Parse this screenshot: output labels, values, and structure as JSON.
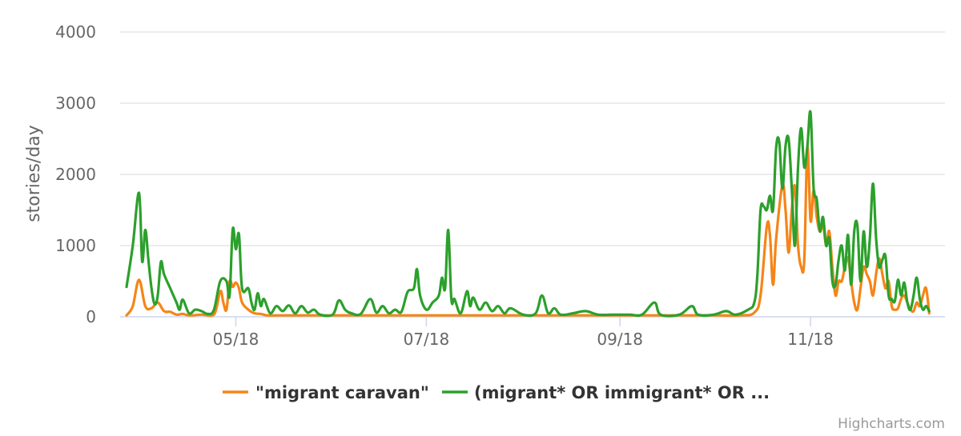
{
  "chart_data": {
    "type": "line",
    "title": "",
    "xlabel": "",
    "ylabel": "stories/day",
    "ylim": [
      0,
      4000
    ],
    "yticks": [
      0,
      1000,
      2000,
      3000,
      4000
    ],
    "xlim": [
      "2018-03-27",
      "2018-12-12"
    ],
    "xticks": [
      {
        "date": "2018-05-01",
        "label": "05/18"
      },
      {
        "date": "2018-07-01",
        "label": "07/18"
      },
      {
        "date": "2018-09-01",
        "label": "09/18"
      },
      {
        "date": "2018-11-01",
        "label": "11/18"
      }
    ],
    "grid": true,
    "legend": "bottom-center",
    "series": [
      {
        "name": "\"migrant caravan\"",
        "color": "#f58518",
        "points": [
          [
            "2018-03-27",
            20
          ],
          [
            "2018-03-29",
            150
          ],
          [
            "2018-03-31",
            520
          ],
          [
            "2018-04-02",
            150
          ],
          [
            "2018-04-04",
            120
          ],
          [
            "2018-04-06",
            200
          ],
          [
            "2018-04-08",
            80
          ],
          [
            "2018-04-10",
            70
          ],
          [
            "2018-04-12",
            30
          ],
          [
            "2018-04-14",
            40
          ],
          [
            "2018-04-16",
            20
          ],
          [
            "2018-04-20",
            30
          ],
          [
            "2018-04-24",
            30
          ],
          [
            "2018-04-26",
            360
          ],
          [
            "2018-04-27",
            200
          ],
          [
            "2018-04-28",
            100
          ],
          [
            "2018-04-29",
            500
          ],
          [
            "2018-04-30",
            420
          ],
          [
            "2018-05-01",
            480
          ],
          [
            "2018-05-02",
            400
          ],
          [
            "2018-05-03",
            200
          ],
          [
            "2018-05-05",
            100
          ],
          [
            "2018-05-07",
            50
          ],
          [
            "2018-05-09",
            40
          ],
          [
            "2018-05-11",
            20
          ],
          [
            "2018-05-15",
            20
          ],
          [
            "2018-05-20",
            20
          ],
          [
            "2018-05-25",
            20
          ],
          [
            "2018-06-01",
            20
          ],
          [
            "2018-06-10",
            20
          ],
          [
            "2018-06-20",
            20
          ],
          [
            "2018-07-01",
            20
          ],
          [
            "2018-07-15",
            20
          ],
          [
            "2018-08-01",
            20
          ],
          [
            "2018-08-15",
            20
          ],
          [
            "2018-09-01",
            20
          ],
          [
            "2018-09-15",
            20
          ],
          [
            "2018-10-01",
            20
          ],
          [
            "2018-10-10",
            20
          ],
          [
            "2018-10-14",
            60
          ],
          [
            "2018-10-16",
            300
          ],
          [
            "2018-10-18",
            1270
          ],
          [
            "2018-10-19",
            1150
          ],
          [
            "2018-10-20",
            450
          ],
          [
            "2018-10-21",
            1100
          ],
          [
            "2018-10-23",
            1850
          ],
          [
            "2018-10-24",
            1500
          ],
          [
            "2018-10-25",
            900
          ],
          [
            "2018-10-26",
            1500
          ],
          [
            "2018-10-27",
            1830
          ],
          [
            "2018-10-28",
            1000
          ],
          [
            "2018-10-29",
            700
          ],
          [
            "2018-10-30",
            800
          ],
          [
            "2018-10-31",
            2380
          ],
          [
            "2018-11-01",
            1350
          ],
          [
            "2018-11-02",
            1780
          ],
          [
            "2018-11-03",
            1400
          ],
          [
            "2018-11-04",
            1200
          ],
          [
            "2018-11-05",
            1300
          ],
          [
            "2018-11-06",
            1000
          ],
          [
            "2018-11-07",
            1200
          ],
          [
            "2018-11-08",
            700
          ],
          [
            "2018-11-09",
            300
          ],
          [
            "2018-11-10",
            500
          ],
          [
            "2018-11-11",
            500
          ],
          [
            "2018-11-12",
            700
          ],
          [
            "2018-11-13",
            830
          ],
          [
            "2018-11-14",
            500
          ],
          [
            "2018-11-15",
            200
          ],
          [
            "2018-11-16",
            100
          ],
          [
            "2018-11-17",
            400
          ],
          [
            "2018-11-18",
            700
          ],
          [
            "2018-11-19",
            600
          ],
          [
            "2018-11-20",
            500
          ],
          [
            "2018-11-21",
            300
          ],
          [
            "2018-11-22",
            600
          ],
          [
            "2018-11-23",
            820
          ],
          [
            "2018-11-24",
            600
          ],
          [
            "2018-11-25",
            400
          ],
          [
            "2018-11-26",
            500
          ],
          [
            "2018-11-27",
            150
          ],
          [
            "2018-11-28",
            100
          ],
          [
            "2018-11-29",
            120
          ],
          [
            "2018-11-30",
            250
          ],
          [
            "2018-12-01",
            300
          ],
          [
            "2018-12-02",
            200
          ],
          [
            "2018-12-03",
            100
          ],
          [
            "2018-12-04",
            80
          ],
          [
            "2018-12-05",
            200
          ],
          [
            "2018-12-06",
            150
          ],
          [
            "2018-12-07",
            300
          ],
          [
            "2018-12-08",
            400
          ],
          [
            "2018-12-09",
            50
          ]
        ]
      },
      {
        "name": "(migrant* OR immigrant* OR ...",
        "color": "#2ca02c",
        "points": [
          [
            "2018-03-27",
            420
          ],
          [
            "2018-03-29",
            1000
          ],
          [
            "2018-03-31",
            1740
          ],
          [
            "2018-04-01",
            780
          ],
          [
            "2018-04-02",
            1220
          ],
          [
            "2018-04-03",
            800
          ],
          [
            "2018-04-04",
            400
          ],
          [
            "2018-04-05",
            180
          ],
          [
            "2018-04-06",
            300
          ],
          [
            "2018-04-07",
            770
          ],
          [
            "2018-04-08",
            600
          ],
          [
            "2018-04-10",
            400
          ],
          [
            "2018-04-12",
            200
          ],
          [
            "2018-04-13",
            100
          ],
          [
            "2018-04-14",
            240
          ],
          [
            "2018-04-16",
            50
          ],
          [
            "2018-04-18",
            100
          ],
          [
            "2018-04-20",
            80
          ],
          [
            "2018-04-22",
            40
          ],
          [
            "2018-04-24",
            100
          ],
          [
            "2018-04-26",
            500
          ],
          [
            "2018-04-28",
            500
          ],
          [
            "2018-04-29",
            300
          ],
          [
            "2018-04-30",
            1230
          ],
          [
            "2018-05-01",
            950
          ],
          [
            "2018-05-02",
            1160
          ],
          [
            "2018-05-03",
            400
          ],
          [
            "2018-05-05",
            400
          ],
          [
            "2018-05-06",
            200
          ],
          [
            "2018-05-07",
            100
          ],
          [
            "2018-05-08",
            330
          ],
          [
            "2018-05-09",
            150
          ],
          [
            "2018-05-10",
            250
          ],
          [
            "2018-05-12",
            50
          ],
          [
            "2018-05-14",
            150
          ],
          [
            "2018-05-16",
            80
          ],
          [
            "2018-05-18",
            160
          ],
          [
            "2018-05-20",
            50
          ],
          [
            "2018-05-22",
            150
          ],
          [
            "2018-05-24",
            60
          ],
          [
            "2018-05-26",
            100
          ],
          [
            "2018-05-28",
            30
          ],
          [
            "2018-06-01",
            30
          ],
          [
            "2018-06-03",
            230
          ],
          [
            "2018-06-05",
            100
          ],
          [
            "2018-06-07",
            50
          ],
          [
            "2018-06-10",
            40
          ],
          [
            "2018-06-13",
            250
          ],
          [
            "2018-06-15",
            60
          ],
          [
            "2018-06-17",
            150
          ],
          [
            "2018-06-19",
            50
          ],
          [
            "2018-06-21",
            100
          ],
          [
            "2018-06-23",
            70
          ],
          [
            "2018-06-25",
            350
          ],
          [
            "2018-06-27",
            400
          ],
          [
            "2018-06-28",
            670
          ],
          [
            "2018-06-29",
            300
          ],
          [
            "2018-07-01",
            100
          ],
          [
            "2018-07-03",
            200
          ],
          [
            "2018-07-05",
            300
          ],
          [
            "2018-07-06",
            550
          ],
          [
            "2018-07-07",
            400
          ],
          [
            "2018-07-08",
            1220
          ],
          [
            "2018-07-09",
            250
          ],
          [
            "2018-07-10",
            250
          ],
          [
            "2018-07-12",
            50
          ],
          [
            "2018-07-14",
            360
          ],
          [
            "2018-07-15",
            150
          ],
          [
            "2018-07-16",
            270
          ],
          [
            "2018-07-18",
            100
          ],
          [
            "2018-07-20",
            200
          ],
          [
            "2018-07-22",
            80
          ],
          [
            "2018-07-24",
            150
          ],
          [
            "2018-07-26",
            50
          ],
          [
            "2018-07-28",
            120
          ],
          [
            "2018-08-01",
            30
          ],
          [
            "2018-08-05",
            50
          ],
          [
            "2018-08-07",
            300
          ],
          [
            "2018-08-09",
            50
          ],
          [
            "2018-08-11",
            120
          ],
          [
            "2018-08-13",
            30
          ],
          [
            "2018-08-17",
            50
          ],
          [
            "2018-08-21",
            80
          ],
          [
            "2018-08-25",
            30
          ],
          [
            "2018-08-30",
            30
          ],
          [
            "2018-09-04",
            30
          ],
          [
            "2018-09-08",
            30
          ],
          [
            "2018-09-12",
            200
          ],
          [
            "2018-09-14",
            30
          ],
          [
            "2018-09-20",
            30
          ],
          [
            "2018-09-24",
            150
          ],
          [
            "2018-09-26",
            30
          ],
          [
            "2018-10-01",
            30
          ],
          [
            "2018-10-05",
            80
          ],
          [
            "2018-10-08",
            30
          ],
          [
            "2018-10-12",
            100
          ],
          [
            "2018-10-14",
            200
          ],
          [
            "2018-10-15",
            600
          ],
          [
            "2018-10-16",
            1500
          ],
          [
            "2018-10-17",
            1550
          ],
          [
            "2018-10-18",
            1500
          ],
          [
            "2018-10-19",
            1700
          ],
          [
            "2018-10-20",
            1500
          ],
          [
            "2018-10-21",
            2380
          ],
          [
            "2018-10-22",
            2450
          ],
          [
            "2018-10-23",
            1800
          ],
          [
            "2018-10-24",
            2400
          ],
          [
            "2018-10-25",
            2490
          ],
          [
            "2018-10-26",
            1800
          ],
          [
            "2018-10-27",
            1000
          ],
          [
            "2018-10-28",
            2100
          ],
          [
            "2018-10-29",
            2650
          ],
          [
            "2018-10-30",
            2100
          ],
          [
            "2018-10-31",
            2400
          ],
          [
            "2018-11-01",
            2870
          ],
          [
            "2018-11-02",
            1800
          ],
          [
            "2018-11-03",
            1650
          ],
          [
            "2018-11-04",
            1200
          ],
          [
            "2018-11-05",
            1400
          ],
          [
            "2018-11-06",
            1000
          ],
          [
            "2018-11-07",
            1100
          ],
          [
            "2018-11-08",
            500
          ],
          [
            "2018-11-09",
            450
          ],
          [
            "2018-11-10",
            800
          ],
          [
            "2018-11-11",
            1000
          ],
          [
            "2018-11-12",
            650
          ],
          [
            "2018-11-13",
            1150
          ],
          [
            "2018-11-14",
            450
          ],
          [
            "2018-11-15",
            1200
          ],
          [
            "2018-11-16",
            1280
          ],
          [
            "2018-11-17",
            500
          ],
          [
            "2018-11-18",
            1200
          ],
          [
            "2018-11-19",
            700
          ],
          [
            "2018-11-20",
            1100
          ],
          [
            "2018-11-21",
            1870
          ],
          [
            "2018-11-22",
            1100
          ],
          [
            "2018-11-23",
            700
          ],
          [
            "2018-11-24",
            800
          ],
          [
            "2018-11-25",
            850
          ],
          [
            "2018-11-26",
            300
          ],
          [
            "2018-11-27",
            250
          ],
          [
            "2018-11-28",
            220
          ],
          [
            "2018-11-29",
            520
          ],
          [
            "2018-11-30",
            300
          ],
          [
            "2018-12-01",
            480
          ],
          [
            "2018-12-02",
            200
          ],
          [
            "2018-12-03",
            100
          ],
          [
            "2018-12-04",
            300
          ],
          [
            "2018-12-05",
            550
          ],
          [
            "2018-12-06",
            250
          ],
          [
            "2018-12-07",
            100
          ],
          [
            "2018-12-08",
            150
          ],
          [
            "2018-12-09",
            80
          ]
        ]
      }
    ],
    "credits": "Highcharts.com"
  }
}
